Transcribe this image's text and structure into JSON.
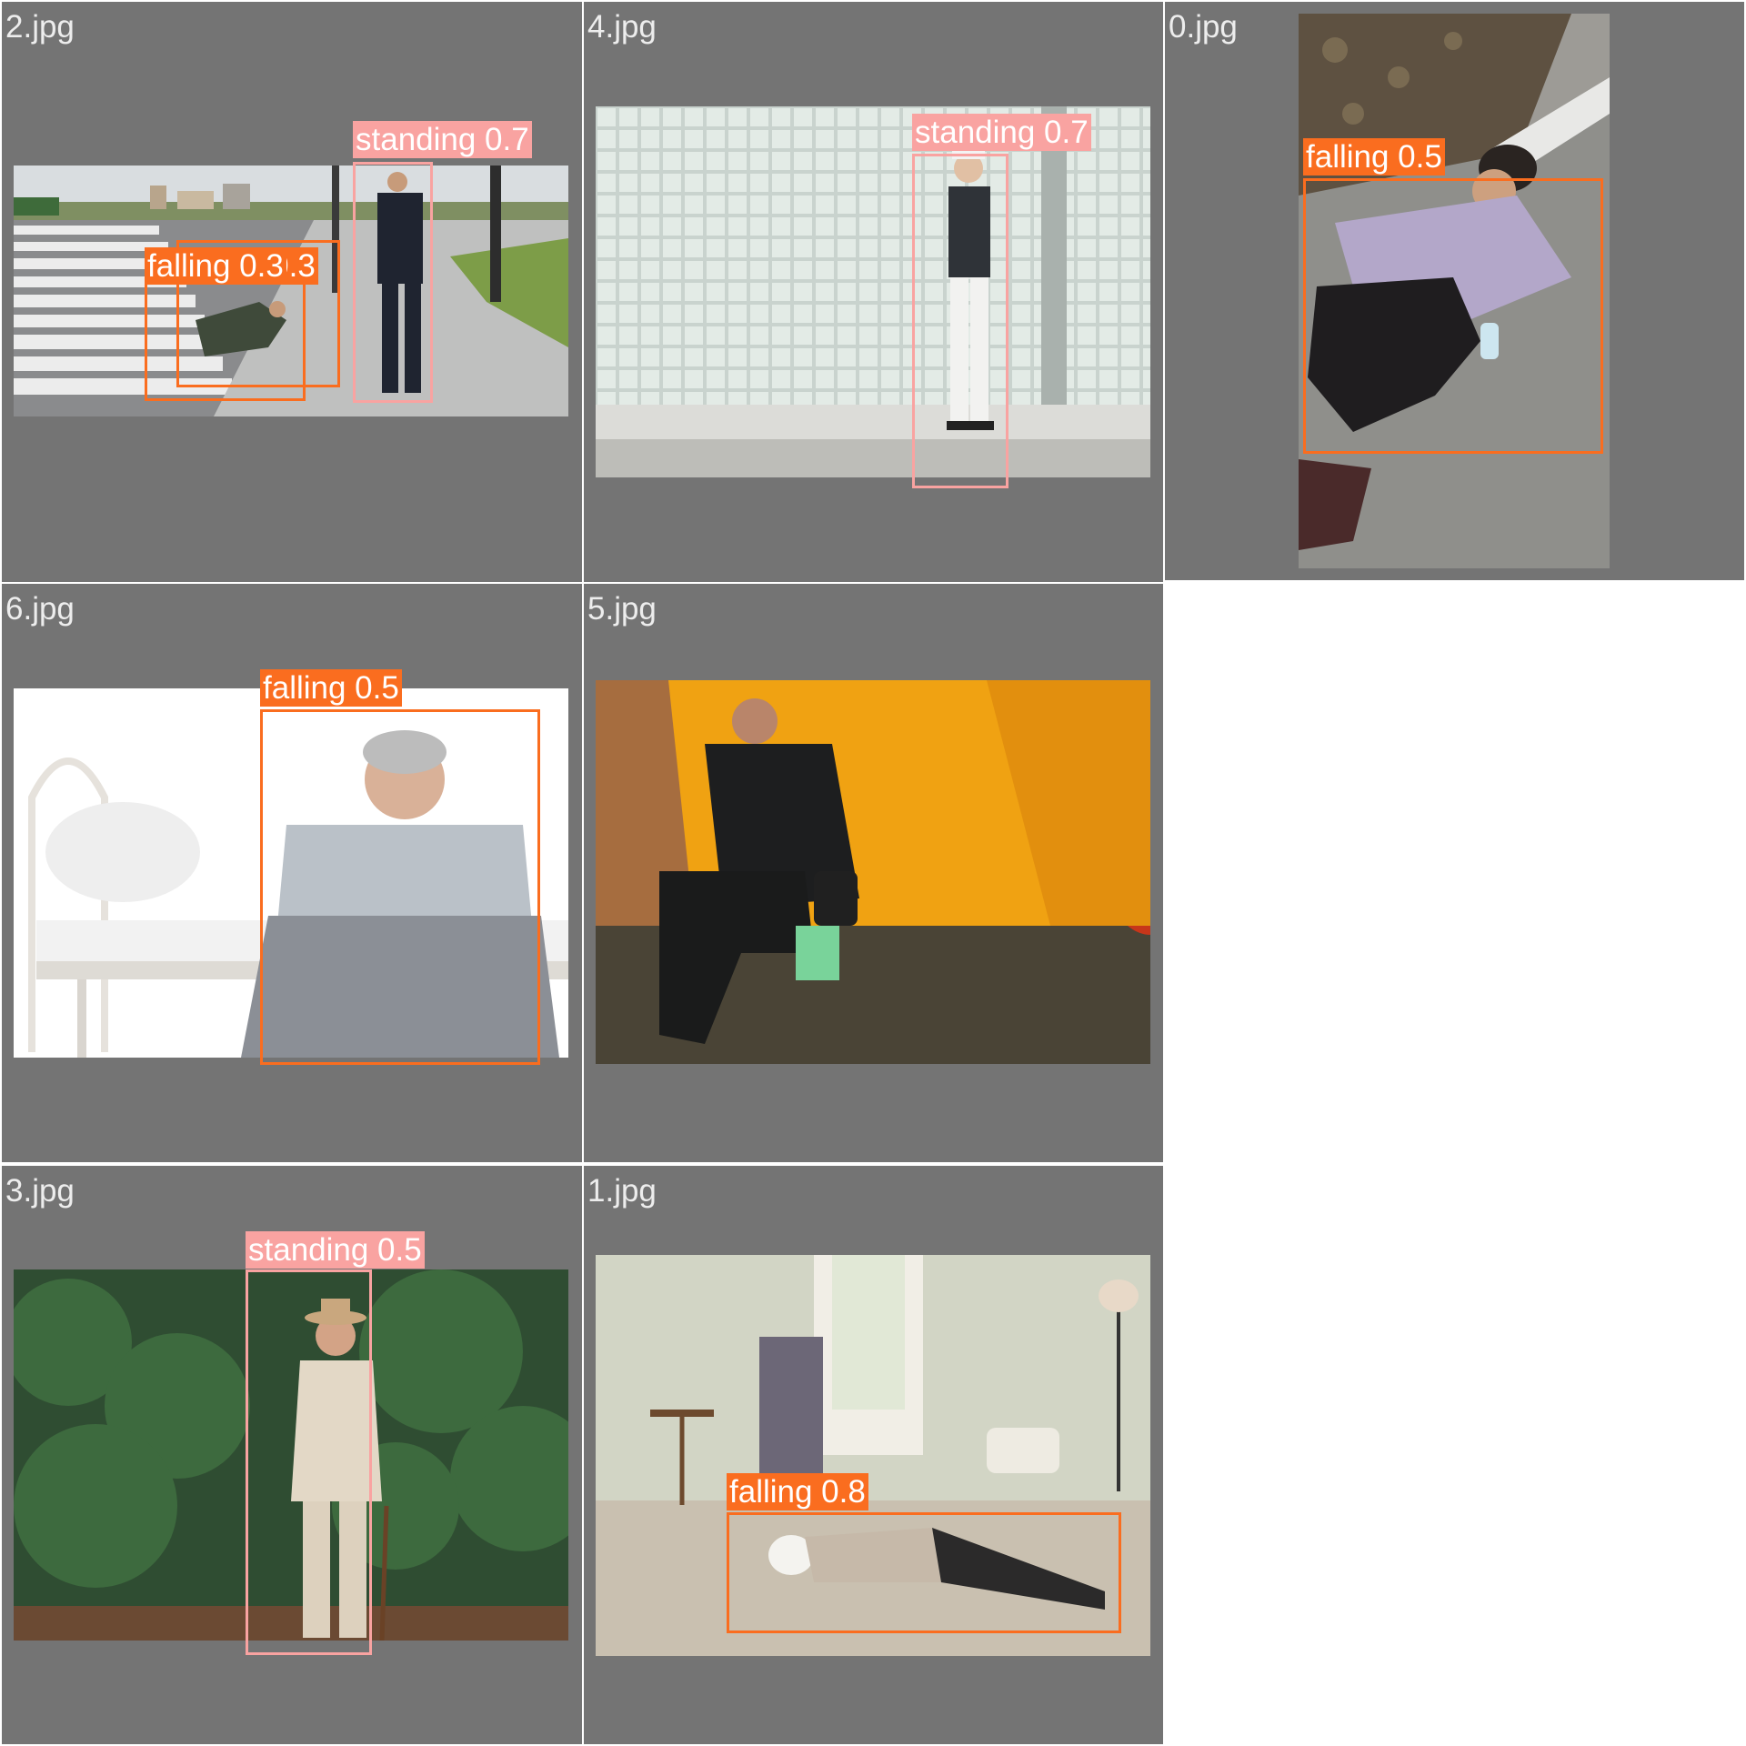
{
  "grid": {
    "tiles": [
      {
        "id": "t2",
        "filename": "2.jpg"
      },
      {
        "id": "t4",
        "filename": "4.jpg"
      },
      {
        "id": "t0",
        "filename": "0.jpg"
      },
      {
        "id": "t6",
        "filename": "6.jpg"
      },
      {
        "id": "t5",
        "filename": "5.jpg"
      },
      {
        "id": "t3",
        "filename": "3.jpg"
      },
      {
        "id": "t1",
        "filename": "1.jpg"
      }
    ]
  },
  "detections": {
    "t2_standing": "standing 0.7",
    "t2_falling_a": "falling 0.3",
    "t2_falling_b": "falling 0.3",
    "t4_standing": "standing 0.7",
    "t0_falling": "falling 0.5",
    "t6_falling": "falling 0.5",
    "t3_standing": "standing 0.5",
    "t1_falling": "falling 0.8"
  },
  "colors": {
    "tile_background": "#747474",
    "falling": "#fa6d1f",
    "standing": "#f9a3a1",
    "filename_text": "#ededed"
  }
}
